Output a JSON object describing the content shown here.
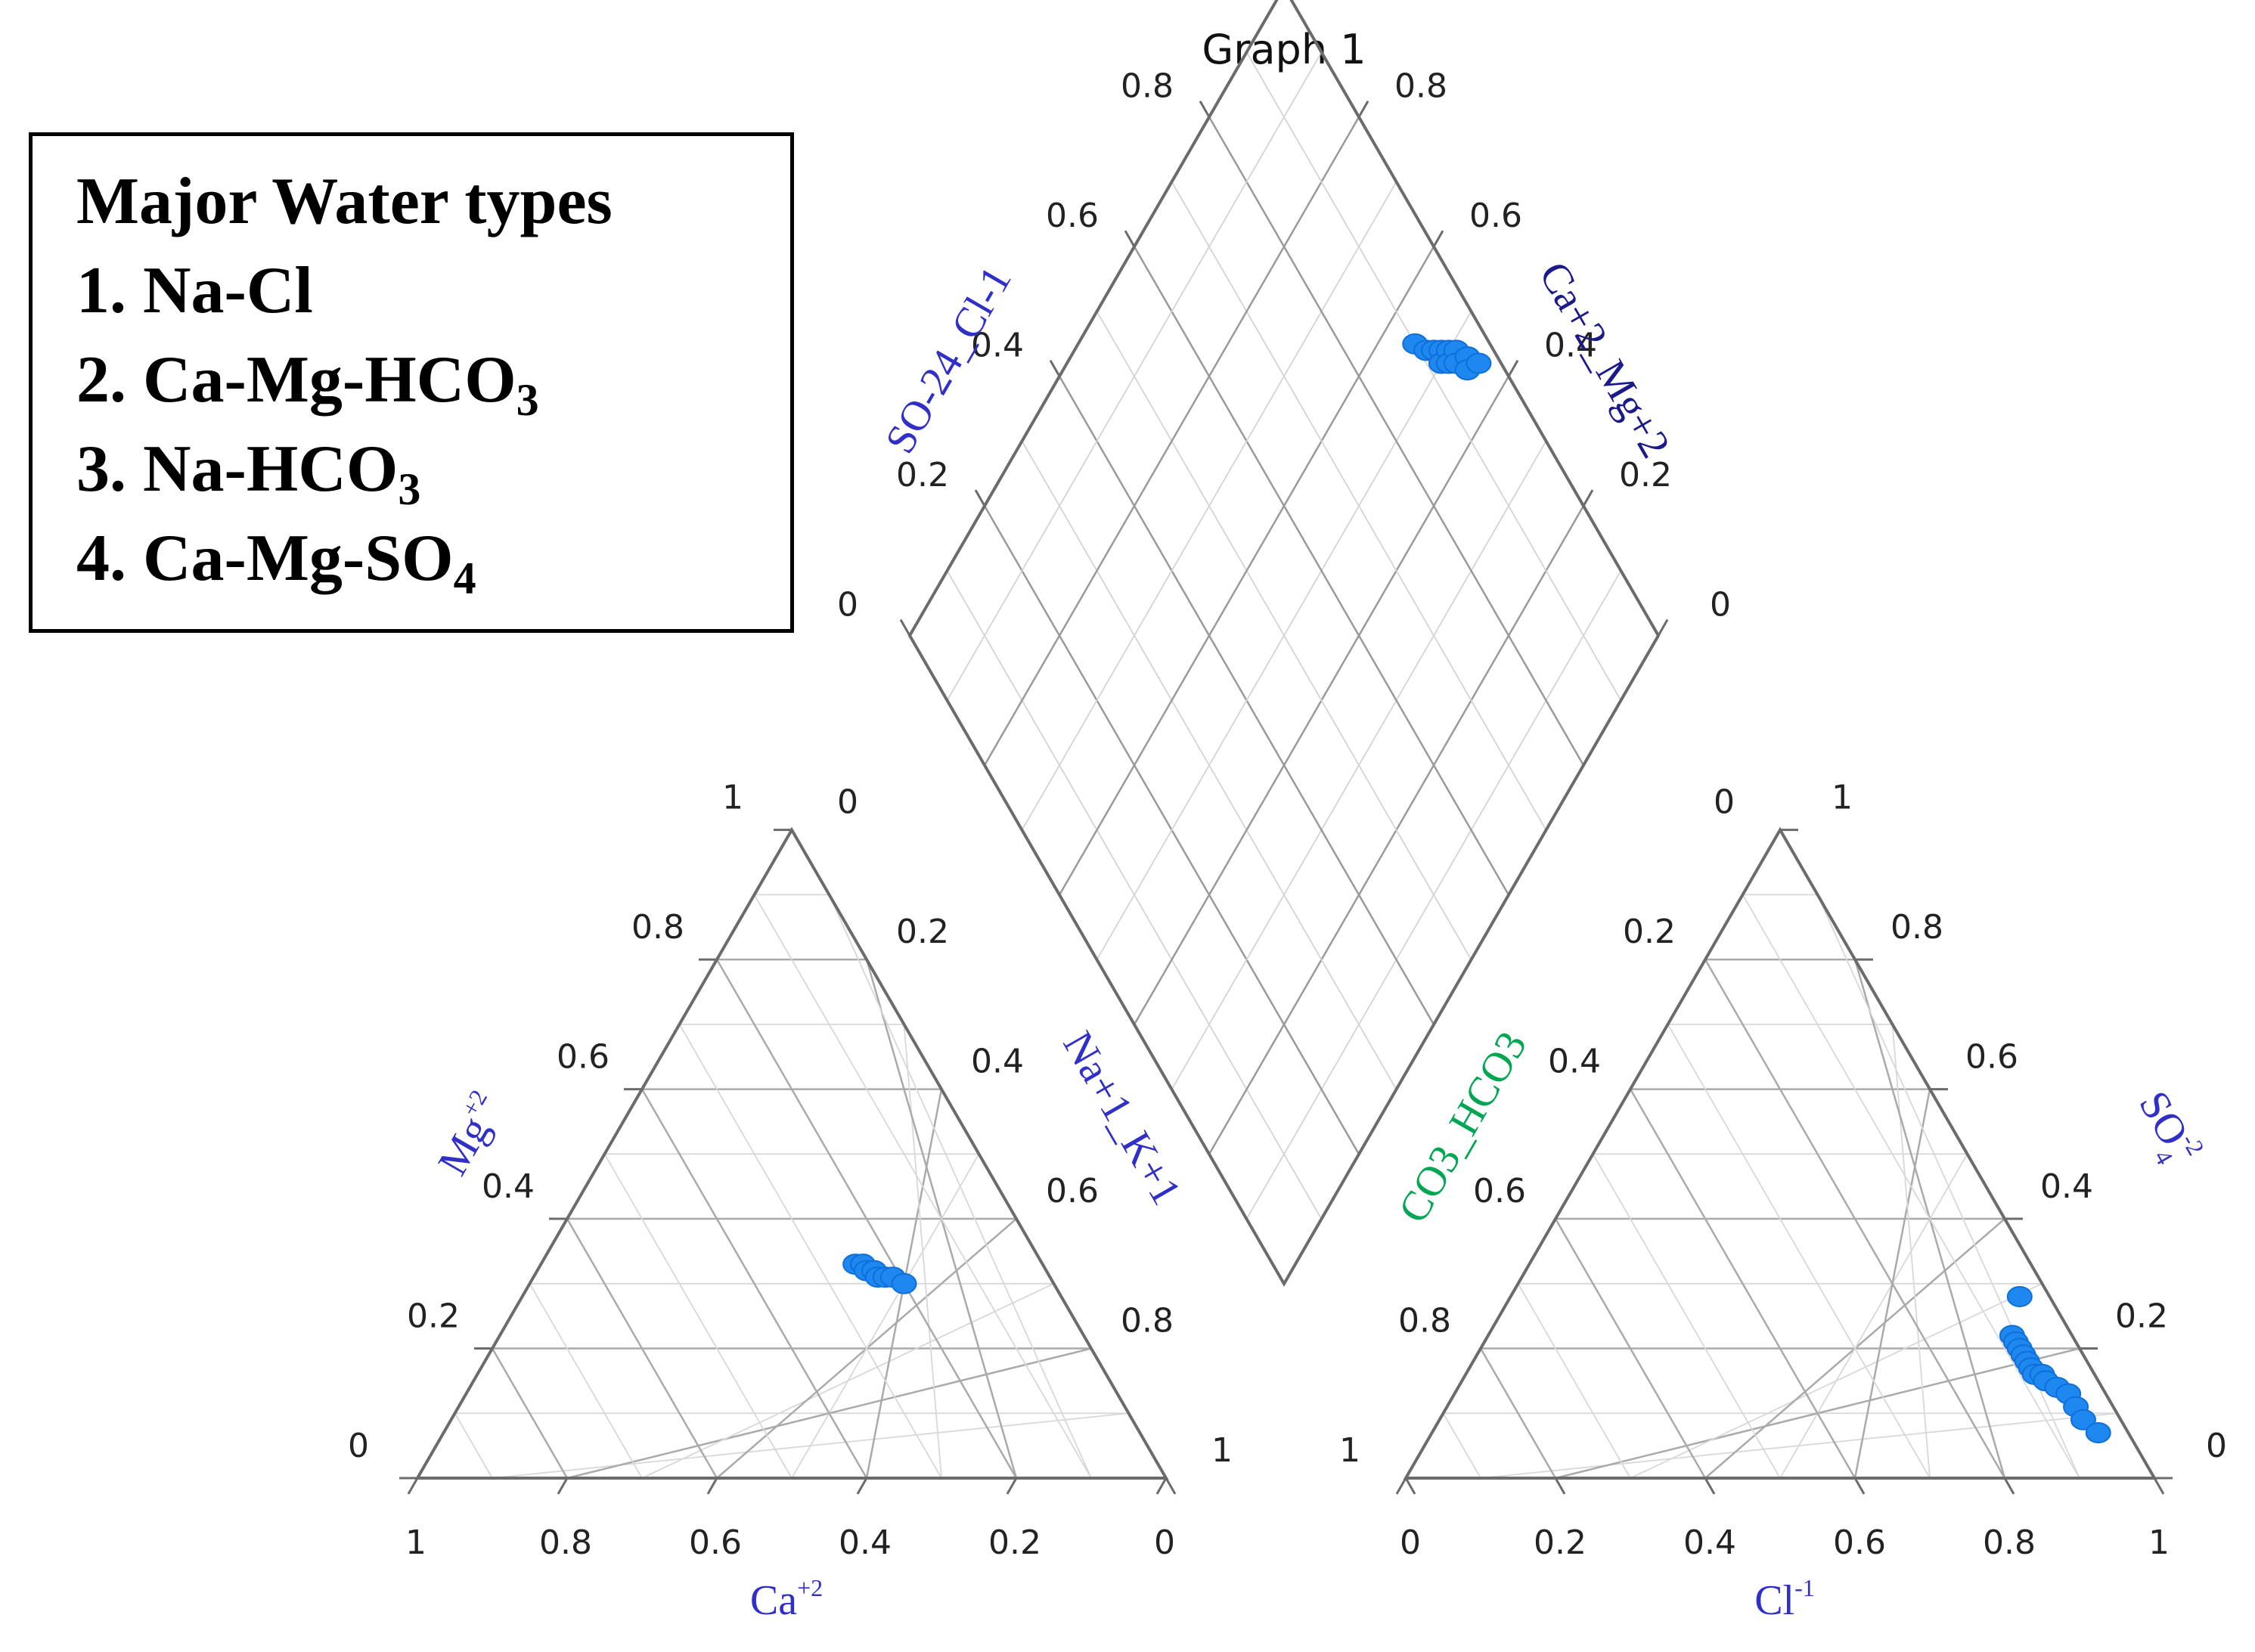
{
  "legend": {
    "title": "Major Water types",
    "items": [
      {
        "prefix": "1. Na-Cl",
        "sub": "",
        "suffix": ""
      },
      {
        "prefix": "2. Ca-Mg-HCO",
        "sub": "3",
        "suffix": ""
      },
      {
        "prefix": "3. Na-HCO",
        "sub": "3",
        "suffix": ""
      },
      {
        "prefix": "4. Ca-Mg-SO",
        "sub": "4",
        "suffix": ""
      }
    ]
  },
  "colors": {
    "point": "#1E88F0",
    "point_edge": "#0F6FD8",
    "axis": "#6b6b6b",
    "grid": "#c9c9c9",
    "label_blue": "#3030C8",
    "label_green": "#00A651",
    "tick": "#222222"
  },
  "chart_data": {
    "type": "scatter",
    "subtype": "piper-diagram",
    "title": "Graph 1",
    "tick_values": [
      "0",
      "0.2",
      "0.4",
      "0.6",
      "0.8",
      "1"
    ],
    "axes": {
      "cation_bottom": {
        "main": "Ca",
        "sup": "+2"
      },
      "cation_left": {
        "main": "Mg",
        "sup": "+2"
      },
      "cation_right": {
        "text": "Na+1_K+1"
      },
      "anion_bottom": {
        "main": "Cl",
        "sup": "-1"
      },
      "anion_left": {
        "text": "CO3_HCO3"
      },
      "anion_right": {
        "main": "SO",
        "sup": "-2",
        "sub": "4"
      },
      "diamond_left": {
        "text": "SO-24_Cl-1"
      },
      "diamond_right": {
        "text": "Ca+2_Mg+2"
      }
    },
    "cation_points": [
      {
        "na_k": 0.42,
        "ca": 0.25,
        "mg": 0.33
      },
      {
        "na_k": 0.43,
        "ca": 0.24,
        "mg": 0.33
      },
      {
        "na_k": 0.44,
        "ca": 0.24,
        "mg": 0.32
      },
      {
        "na_k": 0.45,
        "ca": 0.23,
        "mg": 0.32
      },
      {
        "na_k": 0.46,
        "ca": 0.23,
        "mg": 0.31
      },
      {
        "na_k": 0.47,
        "ca": 0.22,
        "mg": 0.31
      },
      {
        "na_k": 0.48,
        "ca": 0.21,
        "mg": 0.31
      },
      {
        "na_k": 0.5,
        "ca": 0.2,
        "mg": 0.3
      }
    ],
    "anion_points": [
      {
        "cl": 0.68,
        "so4": 0.28,
        "hco3": 0.04
      },
      {
        "cl": 0.7,
        "so4": 0.22,
        "hco3": 0.08
      },
      {
        "cl": 0.71,
        "so4": 0.21,
        "hco3": 0.08
      },
      {
        "cl": 0.72,
        "so4": 0.2,
        "hco3": 0.08
      },
      {
        "cl": 0.73,
        "so4": 0.19,
        "hco3": 0.08
      },
      {
        "cl": 0.74,
        "so4": 0.18,
        "hco3": 0.08
      },
      {
        "cl": 0.75,
        "so4": 0.17,
        "hco3": 0.08
      },
      {
        "cl": 0.76,
        "so4": 0.16,
        "hco3": 0.08
      },
      {
        "cl": 0.77,
        "so4": 0.16,
        "hco3": 0.07
      },
      {
        "cl": 0.78,
        "so4": 0.15,
        "hco3": 0.07
      },
      {
        "cl": 0.8,
        "so4": 0.14,
        "hco3": 0.06
      },
      {
        "cl": 0.82,
        "so4": 0.13,
        "hco3": 0.05
      },
      {
        "cl": 0.84,
        "so4": 0.11,
        "hco3": 0.05
      },
      {
        "cl": 0.86,
        "so4": 0.09,
        "hco3": 0.05
      },
      {
        "cl": 0.89,
        "so4": 0.07,
        "hco3": 0.04
      }
    ],
    "diamond_points": [
      {
        "so4_cl": 0.9,
        "ca_mg": 0.55
      },
      {
        "so4_cl": 0.91,
        "ca_mg": 0.53
      },
      {
        "so4_cl": 0.92,
        "ca_mg": 0.52
      },
      {
        "so4_cl": 0.93,
        "ca_mg": 0.51
      },
      {
        "so4_cl": 0.92,
        "ca_mg": 0.5
      },
      {
        "so4_cl": 0.94,
        "ca_mg": 0.5
      },
      {
        "so4_cl": 0.93,
        "ca_mg": 0.49
      },
      {
        "so4_cl": 0.95,
        "ca_mg": 0.49
      },
      {
        "so4_cl": 0.94,
        "ca_mg": 0.48
      },
      {
        "so4_cl": 0.96,
        "ca_mg": 0.47
      },
      {
        "so4_cl": 0.95,
        "ca_mg": 0.46
      },
      {
        "so4_cl": 0.97,
        "ca_mg": 0.45
      }
    ]
  }
}
